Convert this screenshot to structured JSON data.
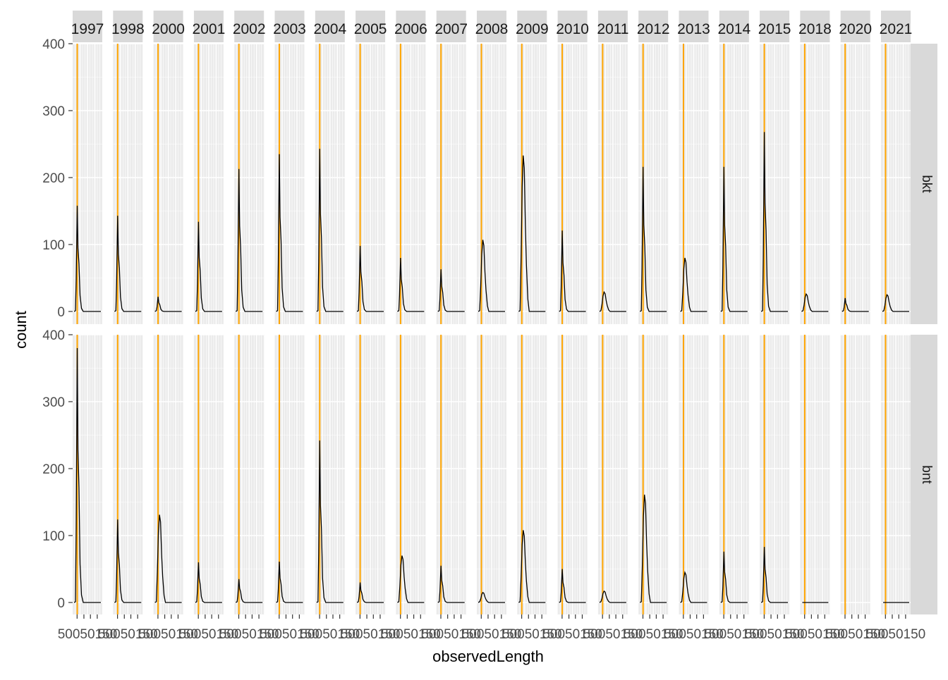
{
  "chart_data": {
    "type": "line",
    "title": "",
    "xlabel": "observedLength",
    "ylabel": "count",
    "facet_cols": [
      "1997",
      "1998",
      "2000",
      "2001",
      "2002",
      "2003",
      "2004",
      "2005",
      "2006",
      "2007",
      "2008",
      "2009",
      "2010",
      "2011",
      "2012",
      "2013",
      "2014",
      "2015",
      "2018",
      "2020",
      "2021"
    ],
    "facet_rows": [
      "bkt",
      "bnt"
    ],
    "ylim": [
      0,
      400
    ],
    "y_ticks": [
      "0",
      "100",
      "200",
      "300",
      "400"
    ],
    "x_tick_text": "50050150",
    "vline_color": "#FFA500",
    "line_color": "#000000",
    "grid": true,
    "panels": [
      {
        "row": "bkt",
        "col": "1997",
        "peak": 158,
        "shape": "spike"
      },
      {
        "row": "bkt",
        "col": "1998",
        "peak": 143,
        "shape": "spike"
      },
      {
        "row": "bkt",
        "col": "2000",
        "peak": 22,
        "shape": "spike"
      },
      {
        "row": "bkt",
        "col": "2001",
        "peak": 134,
        "shape": "spike"
      },
      {
        "row": "bkt",
        "col": "2002",
        "peak": 213,
        "shape": "spike"
      },
      {
        "row": "bkt",
        "col": "2003",
        "peak": 235,
        "shape": "spike"
      },
      {
        "row": "bkt",
        "col": "2004",
        "peak": 243,
        "shape": "spike"
      },
      {
        "row": "bkt",
        "col": "2005",
        "peak": 98,
        "shape": "spike"
      },
      {
        "row": "bkt",
        "col": "2006",
        "peak": 80,
        "shape": "spike"
      },
      {
        "row": "bkt",
        "col": "2007",
        "peak": 63,
        "shape": "spike"
      },
      {
        "row": "bkt",
        "col": "2008",
        "peak": 107,
        "shape": "wide"
      },
      {
        "row": "bkt",
        "col": "2009",
        "peak": 233,
        "shape": "wide"
      },
      {
        "row": "bkt",
        "col": "2010",
        "peak": 121,
        "shape": "spike"
      },
      {
        "row": "bkt",
        "col": "2011",
        "peak": 29,
        "shape": "wide"
      },
      {
        "row": "bkt",
        "col": "2012",
        "peak": 216,
        "shape": "spike"
      },
      {
        "row": "bkt",
        "col": "2013",
        "peak": 80,
        "shape": "wide"
      },
      {
        "row": "bkt",
        "col": "2014",
        "peak": 216,
        "shape": "spike"
      },
      {
        "row": "bkt",
        "col": "2015",
        "peak": 268,
        "shape": "spike"
      },
      {
        "row": "bkt",
        "col": "2018",
        "peak": 26,
        "shape": "wide"
      },
      {
        "row": "bkt",
        "col": "2020",
        "peak": 20,
        "shape": "spike"
      },
      {
        "row": "bkt",
        "col": "2021",
        "peak": 25,
        "shape": "wide"
      },
      {
        "row": "bnt",
        "col": "1997",
        "peak": 380,
        "shape": "spike"
      },
      {
        "row": "bnt",
        "col": "1998",
        "peak": 124,
        "shape": "spike"
      },
      {
        "row": "bnt",
        "col": "2000",
        "peak": 131,
        "shape": "wide"
      },
      {
        "row": "bnt",
        "col": "2001",
        "peak": 60,
        "shape": "spike"
      },
      {
        "row": "bnt",
        "col": "2002",
        "peak": 35,
        "shape": "spike"
      },
      {
        "row": "bnt",
        "col": "2003",
        "peak": 61,
        "shape": "spike"
      },
      {
        "row": "bnt",
        "col": "2004",
        "peak": 242,
        "shape": "spike"
      },
      {
        "row": "bnt",
        "col": "2005",
        "peak": 30,
        "shape": "spike"
      },
      {
        "row": "bnt",
        "col": "2006",
        "peak": 70,
        "shape": "wide"
      },
      {
        "row": "bnt",
        "col": "2007",
        "peak": 55,
        "shape": "spike"
      },
      {
        "row": "bnt",
        "col": "2008",
        "peak": 15,
        "shape": "wide"
      },
      {
        "row": "bnt",
        "col": "2009",
        "peak": 108,
        "shape": "wide"
      },
      {
        "row": "bnt",
        "col": "2010",
        "peak": 50,
        "shape": "spike"
      },
      {
        "row": "bnt",
        "col": "2011",
        "peak": 17,
        "shape": "wide"
      },
      {
        "row": "bnt",
        "col": "2012",
        "peak": 161,
        "shape": "wide"
      },
      {
        "row": "bnt",
        "col": "2013",
        "peak": 45,
        "shape": "wide"
      },
      {
        "row": "bnt",
        "col": "2014",
        "peak": 76,
        "shape": "spike"
      },
      {
        "row": "bnt",
        "col": "2015",
        "peak": 83,
        "shape": "spike"
      },
      {
        "row": "bnt",
        "col": "2018",
        "peak": 0,
        "shape": "flat"
      },
      {
        "row": "bnt",
        "col": "2020",
        "peak": 0,
        "shape": "none"
      },
      {
        "row": "bnt",
        "col": "2021",
        "peak": 0,
        "shape": "flat"
      }
    ]
  }
}
